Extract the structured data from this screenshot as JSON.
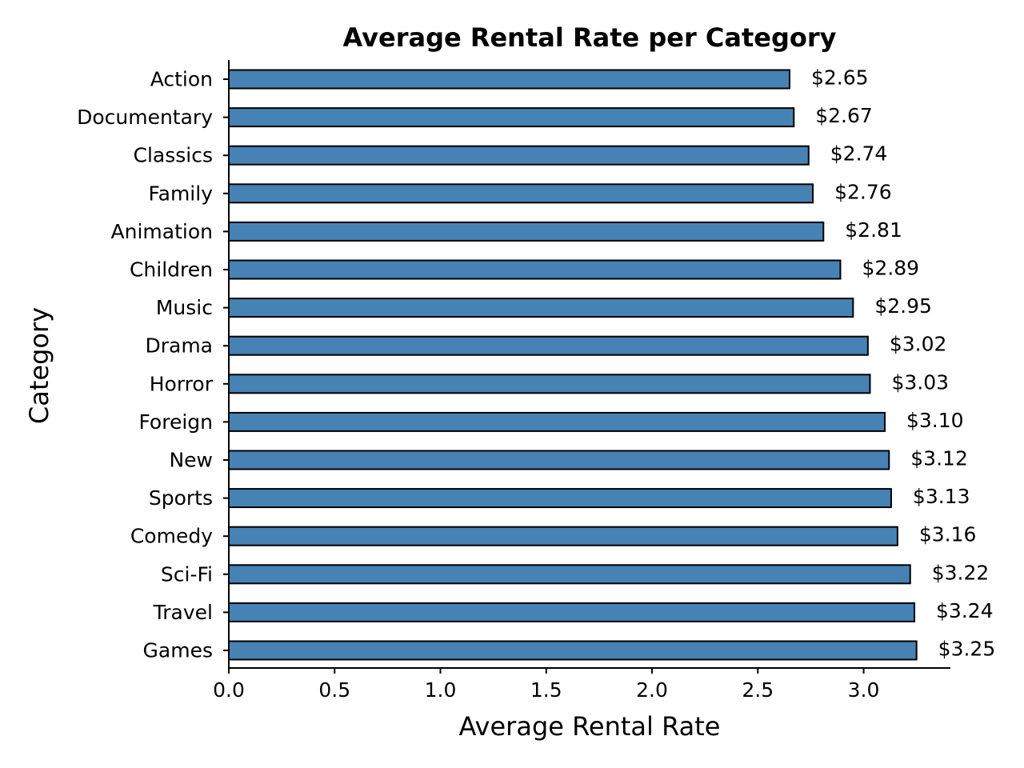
{
  "chart_data": {
    "type": "bar",
    "orientation": "horizontal",
    "title": "Average Rental Rate per Category",
    "xlabel": "Average Rental Rate",
    "ylabel": "Category",
    "xlim": [
      0,
      3.41
    ],
    "xticks": [
      "0.0",
      "0.5",
      "1.0",
      "1.5",
      "2.0",
      "2.5",
      "3.0"
    ],
    "xtick_values": [
      0,
      0.5,
      1.0,
      1.5,
      2.0,
      2.5,
      3.0
    ],
    "grid": false,
    "bar_color": "#4682b4",
    "edge_color": "#000000",
    "categories": [
      "Action",
      "Documentary",
      "Classics",
      "Family",
      "Animation",
      "Children",
      "Music",
      "Drama",
      "Horror",
      "Foreign",
      "New",
      "Sports",
      "Comedy",
      "Sci-Fi",
      "Travel",
      "Games"
    ],
    "values": [
      2.65,
      2.67,
      2.74,
      2.76,
      2.81,
      2.89,
      2.95,
      3.02,
      3.03,
      3.1,
      3.12,
      3.13,
      3.16,
      3.22,
      3.24,
      3.25
    ],
    "value_labels": [
      "$2.65",
      "$2.67",
      "$2.74",
      "$2.76",
      "$2.81",
      "$2.89",
      "$2.95",
      "$3.02",
      "$3.03",
      "$3.10",
      "$3.12",
      "$3.13",
      "$3.16",
      "$3.22",
      "$3.24",
      "$3.25"
    ]
  }
}
